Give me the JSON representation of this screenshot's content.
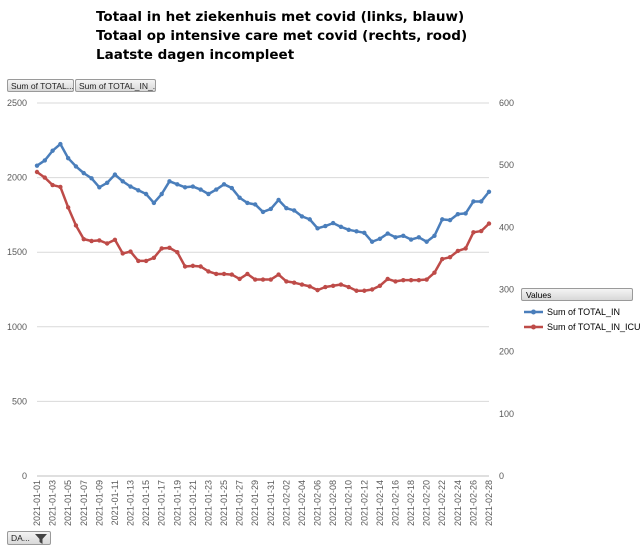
{
  "title_lines": [
    "Totaal in het ziekenhuis met covid (links, blauw)",
    "Totaal op intensive care met covid (rechts, rood)",
    "Laatste dagen incompleet"
  ],
  "field_buttons": {
    "total_in": "Sum of TOTAL...",
    "total_icu": "Sum of TOTAL_IN_..."
  },
  "filter_button": "DA...",
  "legend_title": "Values",
  "colors": {
    "blue": "#4a7ebb",
    "red": "#be4b48",
    "grid": "#d9d9d9"
  },
  "chart_data": {
    "type": "line",
    "title": "",
    "xlabel": "",
    "ylabel": "",
    "y_left_lim": [
      0,
      2500
    ],
    "y_left_ticks": [
      0,
      500,
      1000,
      1500,
      2000,
      2500
    ],
    "y_right_lim": [
      0,
      600
    ],
    "y_right_ticks": [
      0,
      100,
      200,
      300,
      400,
      500,
      600
    ],
    "grid": true,
    "legend_position": "right",
    "x": [
      "2021-01-01",
      "2021-01-02",
      "2021-01-03",
      "2021-01-04",
      "2021-01-05",
      "2021-01-06",
      "2021-01-07",
      "2021-01-08",
      "2021-01-09",
      "2021-01-10",
      "2021-01-11",
      "2021-01-12",
      "2021-01-13",
      "2021-01-14",
      "2021-01-15",
      "2021-01-16",
      "2021-01-17",
      "2021-01-18",
      "2021-01-19",
      "2021-01-20",
      "2021-01-21",
      "2021-01-22",
      "2021-01-23",
      "2021-01-24",
      "2021-01-25",
      "2021-01-26",
      "2021-01-27",
      "2021-01-28",
      "2021-01-29",
      "2021-01-30",
      "2021-01-31",
      "2021-02-01",
      "2021-02-02",
      "2021-02-03",
      "2021-02-04",
      "2021-02-05",
      "2021-02-06",
      "2021-02-07",
      "2021-02-08",
      "2021-02-09",
      "2021-02-10",
      "2021-02-11",
      "2021-02-12",
      "2021-02-13",
      "2021-02-14",
      "2021-02-15",
      "2021-02-16",
      "2021-02-17",
      "2021-02-18",
      "2021-02-19",
      "2021-02-20",
      "2021-02-21",
      "2021-02-22",
      "2021-02-23",
      "2021-02-24",
      "2021-02-25",
      "2021-02-26",
      "2021-02-27",
      "2021-02-28"
    ],
    "x_tick_labels": [
      "2021-01-01",
      "2021-01-03",
      "2021-01-05",
      "2021-01-07",
      "2021-01-09",
      "2021-01-11",
      "2021-01-13",
      "2021-01-15",
      "2021-01-17",
      "2021-01-19",
      "2021-01-21",
      "2021-01-23",
      "2021-01-25",
      "2021-01-27",
      "2021-01-29",
      "2021-01-31",
      "2021-02-02",
      "2021-02-04",
      "2021-02-06",
      "2021-02-08",
      "2021-02-10",
      "2021-02-12",
      "2021-02-14",
      "2021-02-16",
      "2021-02-18",
      "2021-02-20",
      "2021-02-22",
      "2021-02-24",
      "2021-02-26",
      "2021-02-28"
    ],
    "series": [
      {
        "name": "Sum of TOTAL_IN",
        "axis": "left",
        "color": "#4a7ebb",
        "values": [
          2080,
          2115,
          2180,
          2225,
          2130,
          2075,
          2030,
          1995,
          1935,
          1965,
          2020,
          1975,
          1940,
          1915,
          1890,
          1830,
          1890,
          1975,
          1955,
          1935,
          1940,
          1920,
          1890,
          1920,
          1955,
          1930,
          1865,
          1830,
          1820,
          1770,
          1790,
          1850,
          1795,
          1780,
          1740,
          1720,
          1660,
          1675,
          1695,
          1670,
          1650,
          1640,
          1630,
          1570,
          1590,
          1625,
          1600,
          1610,
          1585,
          1600,
          1570,
          1610,
          1720,
          1715,
          1755,
          1760,
          1840,
          1840,
          1905
        ]
      },
      {
        "name": "Sum of TOTAL_IN_ICU",
        "axis": "right",
        "color": "#be4b48",
        "values": [
          489,
          480,
          468,
          465,
          432,
          403,
          381,
          378,
          379,
          374,
          380,
          358,
          361,
          346,
          346,
          351,
          366,
          367,
          360,
          337,
          338,
          337,
          329,
          325,
          325,
          324,
          317,
          325,
          316,
          316,
          316,
          324,
          313,
          311,
          308,
          305,
          299,
          304,
          306,
          308,
          304,
          298,
          298,
          300,
          306,
          317,
          313,
          315,
          315,
          315,
          316,
          327,
          349,
          352,
          362,
          366,
          392,
          394,
          406
        ]
      }
    ]
  }
}
